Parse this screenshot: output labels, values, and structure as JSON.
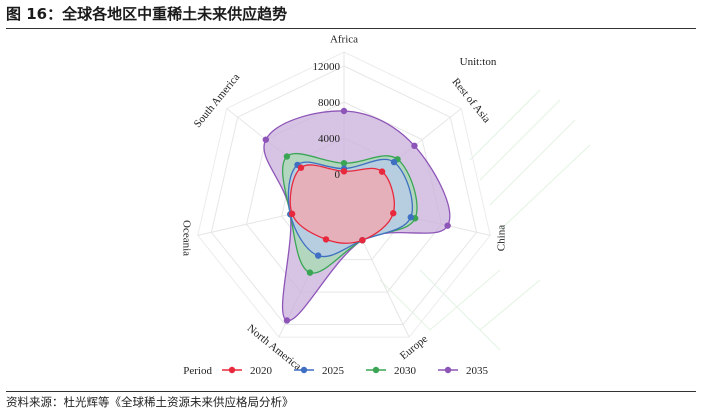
{
  "header": {
    "title": "图 16：全球各地区中重稀土未来供应趋势"
  },
  "footer": {
    "source": "资料来源：杜光辉等《全球稀土资源未来供应格局分析》"
  },
  "chart_data": {
    "type": "radar",
    "unit_label": "Unit:ton",
    "axes": [
      "Africa",
      "Rest of Asia",
      "China",
      "Europe",
      "North America",
      "Oceania",
      "South America"
    ],
    "ticks": [
      0,
      4000,
      8000,
      12000
    ],
    "tick_labels": [
      "0",
      "4000",
      "8000",
      "12000"
    ],
    "rlim": [
      0,
      12000
    ],
    "legend_title": "Period",
    "legend_position": "bottom",
    "series": [
      {
        "name": "2020",
        "color": "#e8283c",
        "fill": "#f4a6ae",
        "values": [
          300,
          2300,
          2500,
          1600,
          1500,
          2800,
          3000
        ]
      },
      {
        "name": "2025",
        "color": "#3f6fc2",
        "fill": "#b7cbea",
        "values": [
          600,
          4000,
          4500,
          1600,
          3500,
          3000,
          3500
        ]
      },
      {
        "name": "2030",
        "color": "#3aa655",
        "fill": "#a7dcb1",
        "values": [
          1200,
          4500,
          5000,
          1600,
          5600,
          3000,
          5000
        ]
      },
      {
        "name": "2035",
        "color": "#8e55b8",
        "fill": "#c9b0dc",
        "values": [
          7000,
          6900,
          8700,
          1600,
          11500,
          3000,
          8000
        ]
      }
    ]
  }
}
